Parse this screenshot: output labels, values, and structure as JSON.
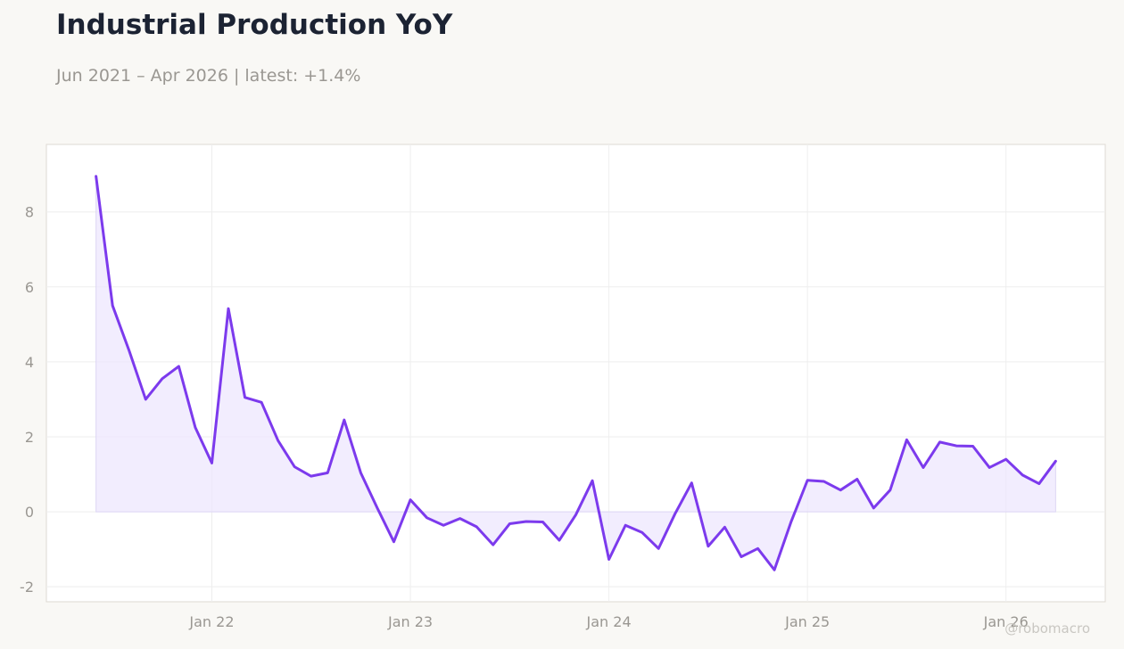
{
  "header": {
    "title": "Industrial Production YoY",
    "subtitle": "Jun 2021 – Apr 2026 | latest: +1.4%"
  },
  "credit": "@robomacro",
  "colors": {
    "line": "#7c3aed",
    "fill": "#ede6fd",
    "grid": "#eeeeee",
    "background": "#f9f8f5",
    "plot_bg": "#ffffff"
  },
  "chart_data": {
    "type": "area",
    "title": "Industrial Production YoY",
    "subtitle": "Jun 2021 – Apr 2026 | latest: +1.4%",
    "xlabel": "",
    "ylabel": "",
    "x_ticks": [
      {
        "date": "2022-01",
        "label": "Jan 22"
      },
      {
        "date": "2023-01",
        "label": "Jan 23"
      },
      {
        "date": "2024-01",
        "label": "Jan 24"
      },
      {
        "date": "2025-01",
        "label": "Jan 25"
      },
      {
        "date": "2026-01",
        "label": "Jan 26"
      }
    ],
    "y_ticks": [
      -2,
      0,
      2,
      4,
      6,
      8
    ],
    "ylim": [
      -2.4,
      9.8
    ],
    "xlim": [
      "2021-03",
      "2026-07"
    ],
    "grid": true,
    "legend": "none",
    "series": [
      {
        "x": [
          "2021-06",
          "2021-07",
          "2021-08",
          "2021-09",
          "2021-10",
          "2021-11",
          "2021-12",
          "2022-01",
          "2022-02",
          "2022-03",
          "2022-04",
          "2022-05",
          "2022-06",
          "2022-07",
          "2022-08",
          "2022-09",
          "2022-10",
          "2022-11",
          "2022-12",
          "2023-01",
          "2023-02",
          "2023-03",
          "2023-04",
          "2023-05",
          "2023-06",
          "2023-07",
          "2023-08",
          "2023-09",
          "2023-10",
          "2023-11",
          "2023-12",
          "2024-01",
          "2024-02",
          "2024-03",
          "2024-04",
          "2024-05",
          "2024-06",
          "2024-07",
          "2024-08",
          "2024-09",
          "2024-10",
          "2024-11",
          "2024-12",
          "2025-01",
          "2025-02",
          "2025-03",
          "2025-04",
          "2025-05",
          "2025-06",
          "2025-07",
          "2025-08",
          "2025-09",
          "2025-10",
          "2025-11",
          "2025-12",
          "2026-01",
          "2026-02",
          "2026-03",
          "2026-04"
        ],
        "values": [
          8.95,
          5.5,
          4.3,
          3.0,
          3.55,
          3.88,
          2.25,
          1.3,
          5.42,
          3.05,
          2.92,
          1.9,
          1.2,
          0.95,
          1.04,
          2.45,
          1.04,
          0.1,
          -0.8,
          0.32,
          -0.16,
          -0.36,
          -0.18,
          -0.4,
          -0.88,
          -0.32,
          -0.26,
          -0.27,
          -0.76,
          -0.08,
          0.83,
          -1.27,
          -0.36,
          -0.55,
          -0.98,
          -0.05,
          0.77,
          -0.92,
          -0.41,
          -1.2,
          -0.98,
          -1.55,
          -0.28,
          0.84,
          0.81,
          0.58,
          0.87,
          0.1,
          0.58,
          1.92,
          1.18,
          1.86,
          1.76,
          1.75,
          1.18,
          1.4,
          0.98,
          0.75,
          1.35
        ]
      }
    ]
  }
}
